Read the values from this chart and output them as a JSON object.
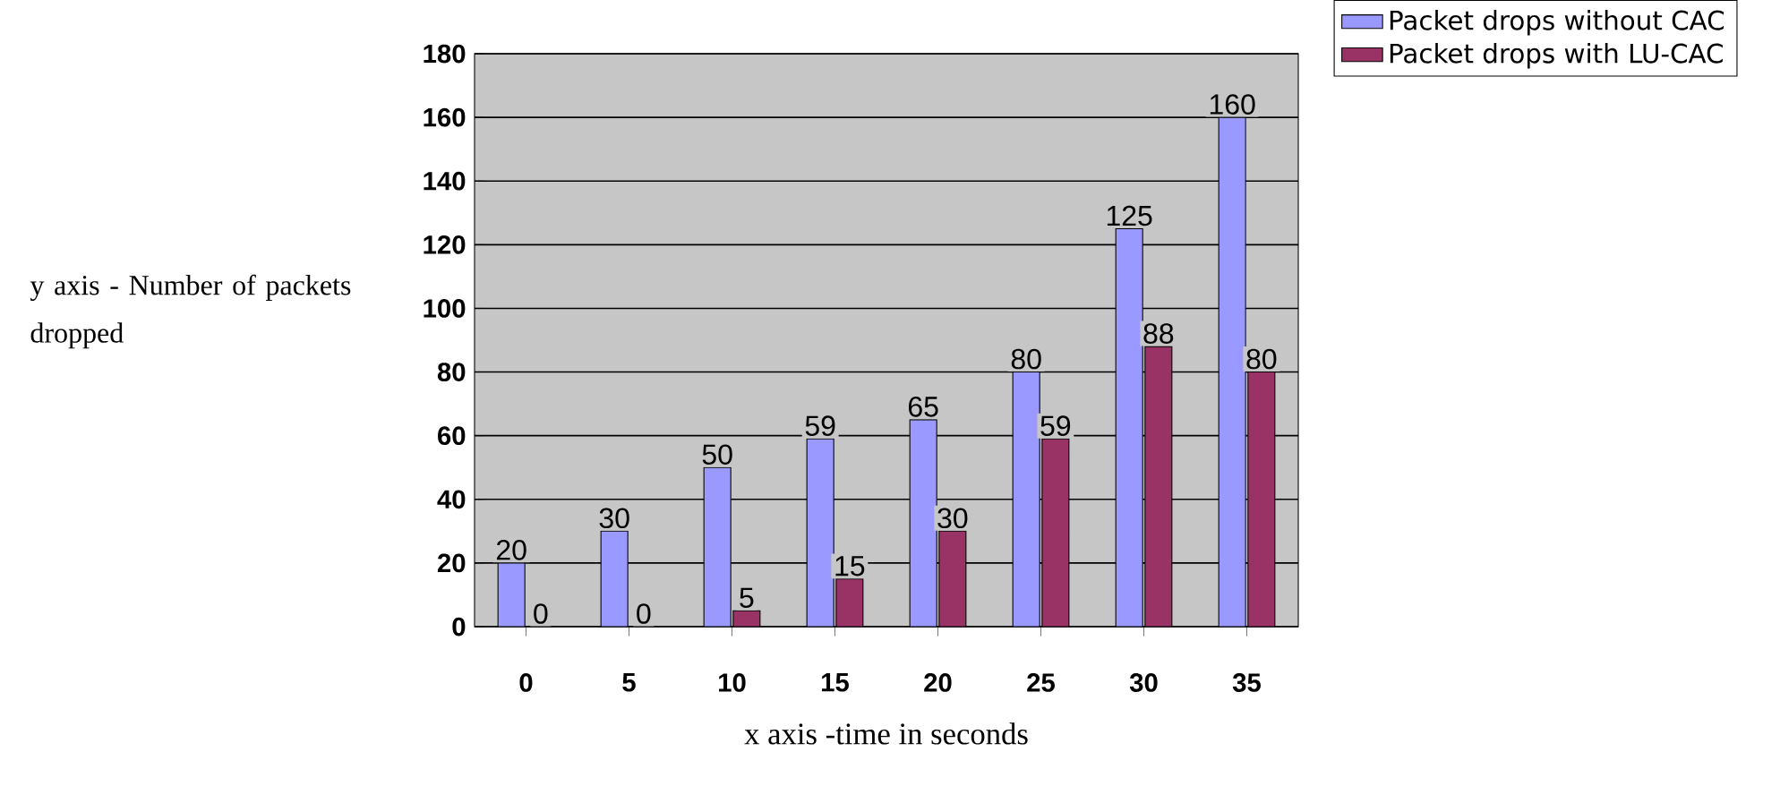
{
  "chart_data": {
    "type": "bar",
    "categories": [
      "0",
      "5",
      "10",
      "15",
      "20",
      "25",
      "30",
      "35"
    ],
    "series": [
      {
        "name": "Packet drops without CAC",
        "color": "#9999ff",
        "values": [
          20,
          30,
          50,
          59,
          65,
          80,
          125,
          160
        ]
      },
      {
        "name": "Packet drops with LU-CAC",
        "color": "#993366",
        "values": [
          0,
          0,
          5,
          15,
          30,
          59,
          88,
          80
        ]
      }
    ],
    "xlabel": "x axis -time in seconds",
    "ylabel": "y axis - Number of packets dropped",
    "ylim": [
      0,
      180
    ],
    "yticks": [
      0,
      20,
      40,
      60,
      80,
      100,
      120,
      140,
      160,
      180
    ],
    "grid": "y",
    "legend": "top right",
    "data_labels": true
  }
}
